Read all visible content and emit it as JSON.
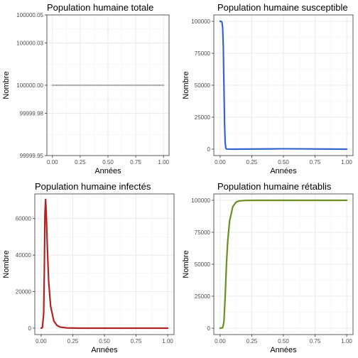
{
  "chart_data": [
    {
      "type": "line",
      "title": "Population humaine totale",
      "xlabel": "Années",
      "ylabel": "Nombre",
      "xlim": [
        -0.05,
        1.05
      ],
      "ylim": [
        99999.95,
        100000.05
      ],
      "x_ticks": [
        0,
        0.25,
        0.5,
        0.75,
        1
      ],
      "x_tick_labels": [
        "0.00",
        "0.25",
        "0.50",
        "0.75",
        "1.00"
      ],
      "y_ticks": [
        99999.95,
        99999.98,
        100000.0,
        100000.03,
        100000.05
      ],
      "y_tick_labels": [
        "99999.95",
        "99999.98",
        "100000.00",
        "100000.03",
        "100000.05"
      ],
      "grid": true,
      "color": "#b3b3b3",
      "points": [
        [
          0,
          100000
        ],
        [
          1,
          100000
        ]
      ]
    },
    {
      "type": "line",
      "title": "Population humaine susceptible",
      "xlabel": "Années",
      "ylabel": "Nombre",
      "xlim": [
        -0.05,
        1.05
      ],
      "ylim": [
        -5000,
        105000
      ],
      "x_ticks": [
        0,
        0.25,
        0.5,
        0.75,
        1
      ],
      "x_tick_labels": [
        "0.00",
        "0.25",
        "0.50",
        "0.75",
        "1.00"
      ],
      "y_ticks": [
        0,
        25000,
        50000,
        75000,
        100000
      ],
      "y_tick_labels": [
        "0",
        "25000",
        "50000",
        "75000",
        "100000"
      ],
      "grid": true,
      "color": "#3366cc",
      "points": [
        [
          0,
          100000
        ],
        [
          0.01,
          99900
        ],
        [
          0.015,
          99000
        ],
        [
          0.02,
          95000
        ],
        [
          0.025,
          80000
        ],
        [
          0.03,
          50000
        ],
        [
          0.035,
          20000
        ],
        [
          0.04,
          5000
        ],
        [
          0.045,
          800
        ],
        [
          0.05,
          100
        ],
        [
          0.1,
          0
        ],
        [
          0.5,
          300
        ],
        [
          1,
          0
        ]
      ]
    },
    {
      "type": "line",
      "title": "Population humaine infectés",
      "xlabel": "Années",
      "ylabel": "Nombre",
      "xlim": [
        -0.05,
        1.05
      ],
      "ylim": [
        -3500,
        73500
      ],
      "x_ticks": [
        0,
        0.25,
        0.5,
        0.75,
        1
      ],
      "x_tick_labels": [
        "0.00",
        "0.25",
        "0.50",
        "0.75",
        "1.00"
      ],
      "y_ticks": [
        0,
        20000,
        40000,
        60000
      ],
      "y_tick_labels": [
        "0",
        "20000",
        "40000",
        "60000"
      ],
      "grid": true,
      "color": "#b22222",
      "points": [
        [
          0,
          0
        ],
        [
          0.01,
          300
        ],
        [
          0.02,
          8000
        ],
        [
          0.025,
          30000
        ],
        [
          0.03,
          62000
        ],
        [
          0.035,
          70500
        ],
        [
          0.04,
          64000
        ],
        [
          0.05,
          42000
        ],
        [
          0.06,
          25000
        ],
        [
          0.075,
          12000
        ],
        [
          0.1,
          4000
        ],
        [
          0.125,
          1500
        ],
        [
          0.15,
          600
        ],
        [
          0.2,
          150
        ],
        [
          0.3,
          0
        ],
        [
          1,
          0
        ]
      ]
    },
    {
      "type": "line",
      "title": "Population humaine rétablis",
      "xlabel": "Années",
      "ylabel": "Nombre",
      "xlim": [
        -0.05,
        1.05
      ],
      "ylim": [
        -5000,
        105000
      ],
      "x_ticks": [
        0,
        0.25,
        0.5,
        0.75,
        1
      ],
      "x_tick_labels": [
        "0.00",
        "0.25",
        "0.50",
        "0.75",
        "1.00"
      ],
      "y_ticks": [
        0,
        25000,
        50000,
        75000,
        100000
      ],
      "y_tick_labels": [
        "0",
        "25000",
        "50000",
        "75000",
        "100000"
      ],
      "grid": true,
      "color": "#6b8e23",
      "points": [
        [
          0,
          0
        ],
        [
          0.02,
          300
        ],
        [
          0.03,
          5000
        ],
        [
          0.04,
          25000
        ],
        [
          0.05,
          50000
        ],
        [
          0.06,
          68000
        ],
        [
          0.075,
          84000
        ],
        [
          0.1,
          95000
        ],
        [
          0.125,
          98500
        ],
        [
          0.15,
          99500
        ],
        [
          0.2,
          99900
        ],
        [
          0.3,
          100000
        ],
        [
          1,
          100000
        ]
      ]
    }
  ]
}
